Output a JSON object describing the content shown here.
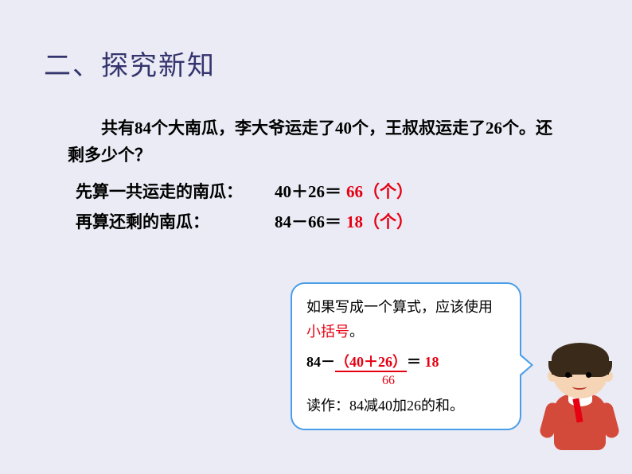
{
  "title": "二、探究新知",
  "problem": {
    "text_indent": "　　",
    "full_text": "共有84个大南瓜，李大爷运走了40个，王叔叔运走了26个。还剩多少个？"
  },
  "calculations": {
    "row1": {
      "label": "先算一共运走的南瓜：",
      "expression": "40＋26＝",
      "result": "66（个）"
    },
    "row2": {
      "label": "再算还剩的南瓜：",
      "expression": "84－66＝",
      "result": "18（个）"
    }
  },
  "bubble": {
    "line1_part1": "如果写成一个算式，应该使用",
    "line1_highlight": "小括号",
    "line1_part2": "。",
    "equation": {
      "prefix": "84－",
      "paren": "（40＋26）",
      "suffix": "＝ ",
      "result": "18",
      "intermediate": "66"
    },
    "read_as": "读作：84减40加26的和。"
  },
  "colors": {
    "background": "#ebebf5",
    "title_color": "#34346e",
    "text_black": "#000000",
    "highlight_red": "#e60012",
    "bubble_border": "#4a9de8",
    "bubble_bg": "#ffffff"
  }
}
